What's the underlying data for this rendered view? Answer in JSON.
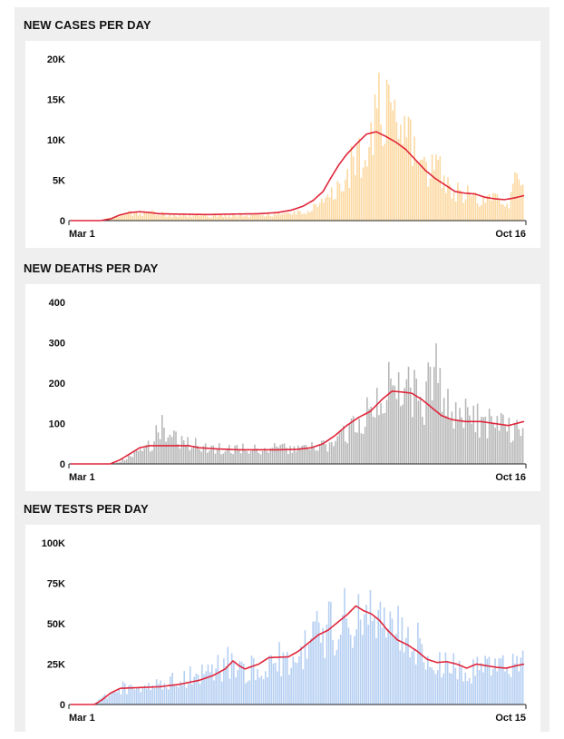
{
  "chart_data": [
    {
      "type": "bar",
      "id": "cases",
      "title": "NEW CASES PER DAY",
      "x_start_label": "Mar 1",
      "x_end_label": "Oct 16",
      "days": 230,
      "yticks": [
        0,
        5000,
        10000,
        15000,
        20000
      ],
      "ytick_labels": [
        "0",
        "5K",
        "10K",
        "15K",
        "20K"
      ],
      "ylim": [
        0,
        20000
      ],
      "bar_color": "#fcd8a0",
      "line_color": "#e0253a",
      "series": [
        {
          "name": "daily",
          "points": [
            [
              0,
              0
            ],
            [
              14,
              0
            ],
            [
              20,
              400
            ],
            [
              30,
              1000
            ],
            [
              40,
              1050
            ],
            [
              50,
              800
            ],
            [
              60,
              700
            ],
            [
              80,
              650
            ],
            [
              100,
              800
            ],
            [
              110,
              900
            ],
            [
              120,
              1400
            ],
            [
              128,
              2300
            ],
            [
              135,
              4000
            ],
            [
              140,
              6500
            ],
            [
              146,
              9000
            ],
            [
              150,
              10800
            ],
            [
              155,
              15500
            ],
            [
              160,
              14500
            ],
            [
              165,
              11000
            ],
            [
              170,
              12500
            ],
            [
              175,
              9000
            ],
            [
              180,
              6500
            ],
            [
              186,
              7500
            ],
            [
              192,
              4500
            ],
            [
              200,
              3500
            ],
            [
              210,
              2500
            ],
            [
              215,
              3000
            ],
            [
              222,
              2500
            ],
            [
              225,
              5500
            ],
            [
              230,
              3000
            ]
          ]
        },
        {
          "name": "7-day average",
          "points": [
            [
              0,
              0
            ],
            [
              15,
              0
            ],
            [
              20,
              200
            ],
            [
              25,
              700
            ],
            [
              30,
              1000
            ],
            [
              35,
              1100
            ],
            [
              40,
              1000
            ],
            [
              45,
              850
            ],
            [
              55,
              800
            ],
            [
              70,
              750
            ],
            [
              80,
              800
            ],
            [
              95,
              850
            ],
            [
              105,
              1000
            ],
            [
              112,
              1300
            ],
            [
              118,
              1800
            ],
            [
              123,
              2500
            ],
            [
              128,
              3600
            ],
            [
              132,
              5300
            ],
            [
              136,
              6900
            ],
            [
              140,
              8200
            ],
            [
              145,
              9500
            ],
            [
              150,
              10700
            ],
            [
              155,
              11000
            ],
            [
              160,
              10400
            ],
            [
              165,
              9700
            ],
            [
              170,
              8800
            ],
            [
              175,
              7500
            ],
            [
              180,
              6200
            ],
            [
              185,
              5200
            ],
            [
              190,
              4400
            ],
            [
              195,
              3600
            ],
            [
              200,
              3400
            ],
            [
              205,
              3300
            ],
            [
              210,
              2900
            ],
            [
              215,
              2700
            ],
            [
              220,
              2600
            ],
            [
              225,
              2800
            ],
            [
              230,
              3100
            ]
          ]
        }
      ]
    },
    {
      "type": "bar",
      "id": "deaths",
      "title": "NEW DEATHS PER DAY",
      "x_start_label": "Mar 1",
      "x_end_label": "Oct 16",
      "days": 230,
      "yticks": [
        0,
        100,
        200,
        300,
        400
      ],
      "ytick_labels": [
        "0",
        "100",
        "200",
        "300",
        "400"
      ],
      "ylim": [
        0,
        400
      ],
      "bar_color": "#b7b7b7",
      "line_color": "#e0253a",
      "series": [
        {
          "name": "daily",
          "points": [
            [
              0,
              0
            ],
            [
              22,
              0
            ],
            [
              30,
              20
            ],
            [
              40,
              50
            ],
            [
              45,
              100
            ],
            [
              55,
              60
            ],
            [
              65,
              50
            ],
            [
              75,
              40
            ],
            [
              90,
              40
            ],
            [
              110,
              40
            ],
            [
              120,
              40
            ],
            [
              130,
              50
            ],
            [
              140,
              80
            ],
            [
              145,
              120
            ],
            [
              150,
              130
            ],
            [
              155,
              150
            ],
            [
              160,
              190
            ],
            [
              165,
              250
            ],
            [
              170,
              210
            ],
            [
              175,
              200
            ],
            [
              180,
              170
            ],
            [
              185,
              300
            ],
            [
              190,
              150
            ],
            [
              195,
              130
            ],
            [
              205,
              120
            ],
            [
              215,
              110
            ],
            [
              225,
              90
            ],
            [
              230,
              80
            ]
          ]
        },
        {
          "name": "7-day average",
          "points": [
            [
              0,
              0
            ],
            [
              20,
              0
            ],
            [
              25,
              10
            ],
            [
              30,
              25
            ],
            [
              35,
              40
            ],
            [
              40,
              45
            ],
            [
              50,
              45
            ],
            [
              60,
              45
            ],
            [
              65,
              40
            ],
            [
              75,
              37
            ],
            [
              85,
              35
            ],
            [
              95,
              35
            ],
            [
              105,
              35
            ],
            [
              115,
              36
            ],
            [
              122,
              40
            ],
            [
              128,
              50
            ],
            [
              134,
              70
            ],
            [
              140,
              95
            ],
            [
              146,
              115
            ],
            [
              152,
              130
            ],
            [
              158,
              160
            ],
            [
              163,
              180
            ],
            [
              168,
              178
            ],
            [
              173,
              175
            ],
            [
              178,
              160
            ],
            [
              183,
              140
            ],
            [
              188,
              120
            ],
            [
              193,
              110
            ],
            [
              200,
              105
            ],
            [
              208,
              105
            ],
            [
              215,
              100
            ],
            [
              222,
              95
            ],
            [
              230,
              105
            ]
          ]
        }
      ]
    },
    {
      "type": "bar",
      "id": "tests",
      "title": "NEW TESTS PER DAY",
      "x_start_label": "Mar 1",
      "x_end_label": "Oct 15",
      "days": 229,
      "yticks": [
        0,
        25000,
        50000,
        75000,
        100000
      ],
      "ytick_labels": [
        "0",
        "25K",
        "50K",
        "75K",
        "100K"
      ],
      "ylim": [
        0,
        100000
      ],
      "bar_color": "#b5cff2",
      "line_color": "#e0253a",
      "series": [
        {
          "name": "daily",
          "points": [
            [
              0,
              0
            ],
            [
              10,
              0
            ],
            [
              15,
              4000
            ],
            [
              20,
              8000
            ],
            [
              25,
              11000
            ],
            [
              35,
              12000
            ],
            [
              45,
              14000
            ],
            [
              55,
              17000
            ],
            [
              65,
              20000
            ],
            [
              75,
              25000
            ],
            [
              80,
              29000
            ],
            [
              85,
              22000
            ],
            [
              95,
              26000
            ],
            [
              105,
              30000
            ],
            [
              110,
              28000
            ],
            [
              115,
              35000
            ],
            [
              120,
              45000
            ],
            [
              125,
              47000
            ],
            [
              130,
              50000
            ],
            [
              135,
              55000
            ],
            [
              140,
              58000
            ],
            [
              145,
              62000
            ],
            [
              150,
              64000
            ],
            [
              155,
              59000
            ],
            [
              160,
              55000
            ],
            [
              165,
              48000
            ],
            [
              170,
              42000
            ],
            [
              175,
              40000
            ],
            [
              180,
              32000
            ],
            [
              185,
              29000
            ],
            [
              190,
              26000
            ],
            [
              195,
              25000
            ],
            [
              200,
              23000
            ],
            [
              205,
              24000
            ],
            [
              215,
              25000
            ],
            [
              225,
              27000
            ],
            [
              229,
              28000
            ]
          ]
        },
        {
          "name": "7-day average",
          "points": [
            [
              0,
              0
            ],
            [
              12,
              0
            ],
            [
              16,
              3000
            ],
            [
              20,
              7000
            ],
            [
              25,
              10000
            ],
            [
              35,
              10500
            ],
            [
              45,
              11000
            ],
            [
              55,
              12500
            ],
            [
              65,
              15000
            ],
            [
              72,
              18000
            ],
            [
              78,
              22000
            ],
            [
              82,
              27000
            ],
            [
              85,
              24000
            ],
            [
              88,
              22000
            ],
            [
              95,
              25000
            ],
            [
              100,
              29000
            ],
            [
              110,
              29500
            ],
            [
              115,
              33000
            ],
            [
              120,
              38000
            ],
            [
              125,
              43000
            ],
            [
              130,
              46000
            ],
            [
              135,
              51000
            ],
            [
              140,
              56000
            ],
            [
              144,
              61000
            ],
            [
              148,
              58000
            ],
            [
              152,
              56000
            ],
            [
              156,
              52000
            ],
            [
              160,
              46000
            ],
            [
              165,
              40000
            ],
            [
              170,
              37000
            ],
            [
              175,
              33000
            ],
            [
              180,
              28000
            ],
            [
              185,
              26000
            ],
            [
              190,
              26500
            ],
            [
              195,
              25000
            ],
            [
              200,
              22500
            ],
            [
              205,
              25000
            ],
            [
              210,
              24000
            ],
            [
              215,
              23000
            ],
            [
              220,
              22500
            ],
            [
              225,
              24000
            ],
            [
              229,
              25000
            ]
          ]
        }
      ]
    }
  ]
}
